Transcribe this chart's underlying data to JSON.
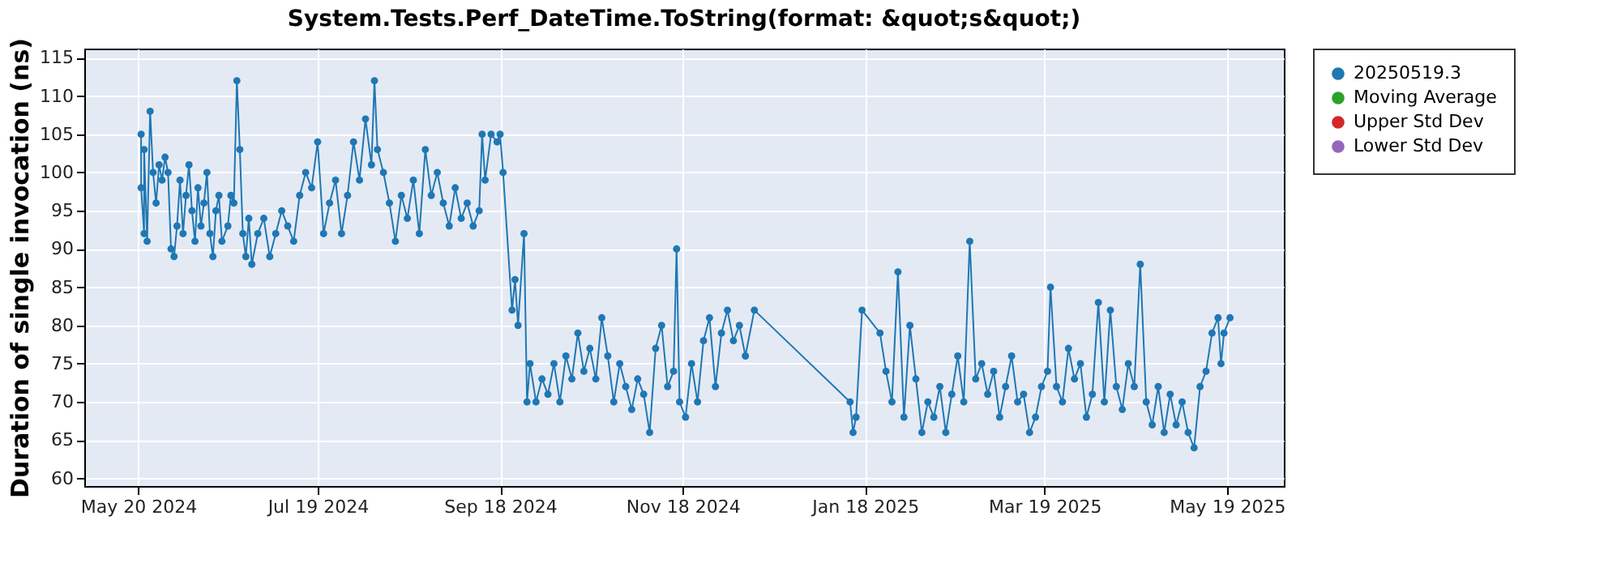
{
  "chart_data": {
    "type": "line",
    "title": "System.Tests.Perf_DateTime.ToString(format: &quot;s&quot;)",
    "ylabel": "Duration of single invocation (ns)",
    "xlim": [
      "2024-05-02",
      "2025-06-07"
    ],
    "xticks": [
      {
        "value": "2024-05-20",
        "label": "May 20 2024"
      },
      {
        "value": "2024-07-19",
        "label": "Jul 19 2024"
      },
      {
        "value": "2024-09-18",
        "label": "Sep 18 2024"
      },
      {
        "value": "2024-11-18",
        "label": "Nov 18 2024"
      },
      {
        "value": "2025-01-18",
        "label": "Jan 18 2025"
      },
      {
        "value": "2025-03-19",
        "label": "Mar 19 2025"
      },
      {
        "value": "2025-05-19",
        "label": "May 19 2025"
      }
    ],
    "ylim": [
      59,
      116.2
    ],
    "yticks": [
      60,
      65,
      70,
      75,
      80,
      85,
      90,
      95,
      100,
      105,
      110,
      115
    ],
    "grid": true,
    "legend": "right",
    "marker": "circle",
    "line_style": "solid",
    "series": [
      {
        "name": "20250519.3",
        "color": "#1f77b4",
        "x": [
          "2024-05-21",
          "2024-05-21",
          "2024-05-22",
          "2024-05-22",
          "2024-05-23",
          "2024-05-24",
          "2024-05-25",
          "2024-05-26",
          "2024-05-27",
          "2024-05-28",
          "2024-05-29",
          "2024-05-30",
          "2024-05-31",
          "2024-06-01",
          "2024-06-02",
          "2024-06-03",
          "2024-06-04",
          "2024-06-05",
          "2024-06-06",
          "2024-06-07",
          "2024-06-08",
          "2024-06-09",
          "2024-06-10",
          "2024-06-11",
          "2024-06-12",
          "2024-06-13",
          "2024-06-14",
          "2024-06-15",
          "2024-06-16",
          "2024-06-17",
          "2024-06-19",
          "2024-06-20",
          "2024-06-21",
          "2024-06-22",
          "2024-06-23",
          "2024-06-24",
          "2024-06-25",
          "2024-06-26",
          "2024-06-27",
          "2024-06-29",
          "2024-07-01",
          "2024-07-03",
          "2024-07-05",
          "2024-07-07",
          "2024-07-09",
          "2024-07-11",
          "2024-07-13",
          "2024-07-15",
          "2024-07-17",
          "2024-07-19",
          "2024-07-21",
          "2024-07-23",
          "2024-07-25",
          "2024-07-27",
          "2024-07-29",
          "2024-07-31",
          "2024-08-02",
          "2024-08-04",
          "2024-08-06",
          "2024-08-07",
          "2024-08-08",
          "2024-08-10",
          "2024-08-12",
          "2024-08-14",
          "2024-08-16",
          "2024-08-18",
          "2024-08-20",
          "2024-08-22",
          "2024-08-24",
          "2024-08-26",
          "2024-08-28",
          "2024-08-30",
          "2024-09-01",
          "2024-09-03",
          "2024-09-05",
          "2024-09-07",
          "2024-09-09",
          "2024-09-11",
          "2024-09-12",
          "2024-09-13",
          "2024-09-15",
          "2024-09-17",
          "2024-09-18",
          "2024-09-19",
          "2024-09-22",
          "2024-09-23",
          "2024-09-24",
          "2024-09-26",
          "2024-09-27",
          "2024-09-28",
          "2024-09-30",
          "2024-10-02",
          "2024-10-04",
          "2024-10-06",
          "2024-10-08",
          "2024-10-10",
          "2024-10-12",
          "2024-10-14",
          "2024-10-16",
          "2024-10-18",
          "2024-10-20",
          "2024-10-22",
          "2024-10-24",
          "2024-10-26",
          "2024-10-28",
          "2024-10-30",
          "2024-11-01",
          "2024-11-03",
          "2024-11-05",
          "2024-11-07",
          "2024-11-09",
          "2024-11-11",
          "2024-11-13",
          "2024-11-15",
          "2024-11-16",
          "2024-11-17",
          "2024-11-19",
          "2024-11-21",
          "2024-11-23",
          "2024-11-25",
          "2024-11-27",
          "2024-11-29",
          "2024-12-01",
          "2024-12-03",
          "2024-12-05",
          "2024-12-07",
          "2024-12-09",
          "2024-12-12",
          "2025-01-13",
          "2025-01-14",
          "2025-01-15",
          "2025-01-17",
          "2025-01-23",
          "2025-01-25",
          "2025-01-27",
          "2025-01-29",
          "2025-01-31",
          "2025-02-02",
          "2025-02-04",
          "2025-02-06",
          "2025-02-08",
          "2025-02-10",
          "2025-02-12",
          "2025-02-14",
          "2025-02-16",
          "2025-02-18",
          "2025-02-20",
          "2025-02-22",
          "2025-02-24",
          "2025-02-26",
          "2025-02-28",
          "2025-03-02",
          "2025-03-04",
          "2025-03-06",
          "2025-03-08",
          "2025-03-10",
          "2025-03-12",
          "2025-03-14",
          "2025-03-16",
          "2025-03-18",
          "2025-03-20",
          "2025-03-21",
          "2025-03-23",
          "2025-03-25",
          "2025-03-27",
          "2025-03-29",
          "2025-03-31",
          "2025-04-02",
          "2025-04-04",
          "2025-04-06",
          "2025-04-08",
          "2025-04-10",
          "2025-04-12",
          "2025-04-14",
          "2025-04-16",
          "2025-04-18",
          "2025-04-20",
          "2025-04-22",
          "2025-04-24",
          "2025-04-26",
          "2025-04-28",
          "2025-04-30",
          "2025-05-02",
          "2025-05-04",
          "2025-05-06",
          "2025-05-08",
          "2025-05-10",
          "2025-05-12",
          "2025-05-14",
          "2025-05-16",
          "2025-05-17",
          "2025-05-18",
          "2025-05-20"
        ],
        "values": [
          105,
          98,
          92,
          103,
          91,
          108,
          100,
          96,
          101,
          99,
          102,
          100,
          90,
          89,
          93,
          99,
          92,
          97,
          101,
          95,
          91,
          98,
          93,
          96,
          100,
          92,
          89,
          95,
          97,
          91,
          93,
          97,
          96,
          112,
          103,
          92,
          89,
          94,
          88,
          92,
          94,
          89,
          92,
          95,
          93,
          91,
          97,
          100,
          98,
          104,
          92,
          96,
          99,
          92,
          97,
          104,
          99,
          107,
          101,
          112,
          103,
          100,
          96,
          91,
          97,
          94,
          99,
          92,
          103,
          97,
          100,
          96,
          93,
          98,
          94,
          96,
          93,
          95,
          105,
          99,
          105,
          104,
          105,
          100,
          82,
          86,
          80,
          92,
          70,
          75,
          70,
          73,
          71,
          75,
          70,
          76,
          73,
          79,
          74,
          77,
          73,
          81,
          76,
          70,
          75,
          72,
          69,
          73,
          71,
          66,
          77,
          80,
          72,
          74,
          90,
          70,
          68,
          75,
          70,
          78,
          81,
          72,
          79,
          82,
          78,
          80,
          76,
          82,
          70,
          66,
          68,
          82,
          79,
          74,
          70,
          87,
          68,
          80,
          73,
          66,
          70,
          68,
          72,
          66,
          71,
          76,
          70,
          91,
          73,
          75,
          71,
          74,
          68,
          72,
          76,
          70,
          71,
          66,
          68,
          72,
          74,
          85,
          72,
          70,
          77,
          73,
          75,
          68,
          71,
          83,
          70,
          82,
          72,
          69,
          75,
          72,
          88,
          70,
          67,
          72,
          66,
          71,
          67,
          70,
          66,
          64,
          72,
          74,
          79,
          81,
          75,
          79,
          81
        ]
      },
      {
        "name": "Moving Average",
        "color": "#2ca02c"
      },
      {
        "name": "Upper Std Dev",
        "color": "#d62728"
      },
      {
        "name": "Lower Std Dev",
        "color": "#9467bd"
      }
    ]
  }
}
